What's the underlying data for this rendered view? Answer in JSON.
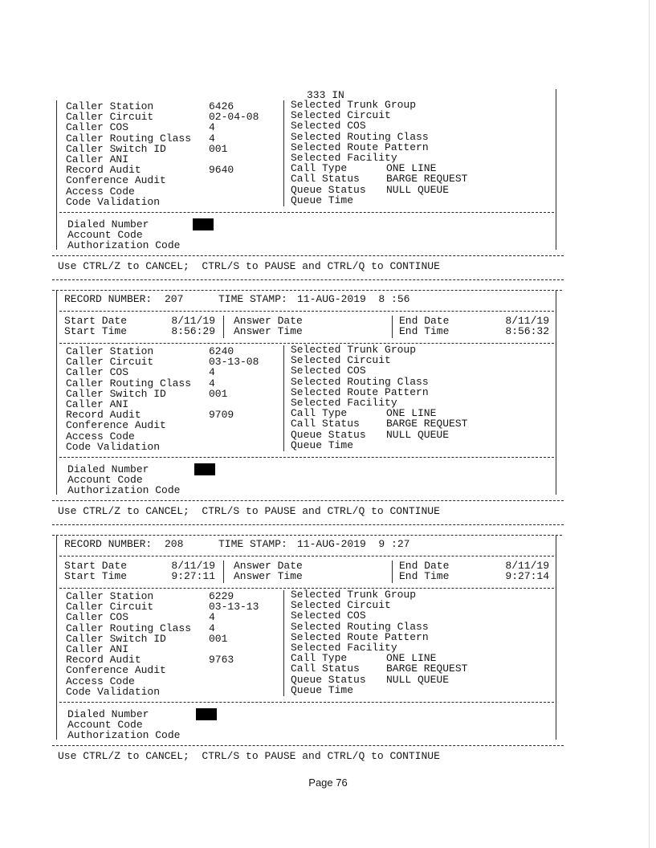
{
  "labels": {
    "left": [
      "Caller Station",
      "Caller Circuit",
      "Caller COS",
      "Caller Routing Class",
      "Caller Switch ID",
      "Caller ANI",
      "Record Audit",
      "Conference Audit",
      "Access Code",
      "Code Validation"
    ],
    "right": [
      "Selected Trunk Group",
      "Selected Circuit",
      "Selected COS",
      "Selected Routing Class",
      "Selected Route Pattern",
      "Selected Facility",
      "Call Type",
      "Call Status",
      "Queue Status",
      "Queue Time"
    ],
    "bottom": [
      "Dialed Number",
      "Account Code",
      "Authorization Code"
    ],
    "record_number": "RECORD NUMBER:",
    "time_stamp": "TIME STAMP:",
    "start_date": "Start Date",
    "start_time": "Start Time",
    "answer_date": "Answer Date",
    "answer_time": "Answer Time",
    "end_date": "End Date",
    "end_time": "End Time"
  },
  "control_hint": "Use CTRL/Z to CANCEL;  CTRL/S to PAUSE and CTRL/Q to CONTINUE",
  "page": "Page 76",
  "records": [
    {
      "partial": true,
      "trunk_group_overflow": "333 IN",
      "left_values": [
        "6426",
        "02-04-08",
        "4",
        "4",
        "001",
        "",
        "9640",
        "",
        "",
        ""
      ],
      "right_values": [
        "",
        "",
        "",
        "",
        "",
        "",
        "ONE LINE",
        "BARGE REQUEST",
        "NULL QUEUE",
        ""
      ],
      "dialed_number_redacted": true
    },
    {
      "record_number": "207",
      "time_stamp": "11-AUG-2019  8 :56",
      "start_date": "8/11/19",
      "start_time": "8:56:29",
      "end_date": "8/11/19",
      "end_time": "8:56:32",
      "left_values": [
        "6240",
        "03-13-08",
        "4",
        "4",
        "001",
        "",
        "9709",
        "",
        "",
        ""
      ],
      "right_values": [
        "",
        "",
        "",
        "",
        "",
        "",
        "ONE LINE",
        "BARGE REQUEST",
        "NULL QUEUE",
        ""
      ],
      "dialed_number_redacted": true
    },
    {
      "record_number": "208",
      "time_stamp": "11-AUG-2019  9 :27",
      "start_date": "8/11/19",
      "start_time": "9:27:11",
      "end_date": "8/11/19",
      "end_time": "9:27:14",
      "left_values": [
        "6229",
        "03-13-13",
        "4",
        "4",
        "001",
        "",
        "9763",
        "",
        "",
        ""
      ],
      "right_values": [
        "",
        "",
        "",
        "",
        "",
        "",
        "ONE LINE",
        "BARGE REQUEST",
        "NULL QUEUE",
        ""
      ],
      "dialed_number_redacted": true
    }
  ]
}
